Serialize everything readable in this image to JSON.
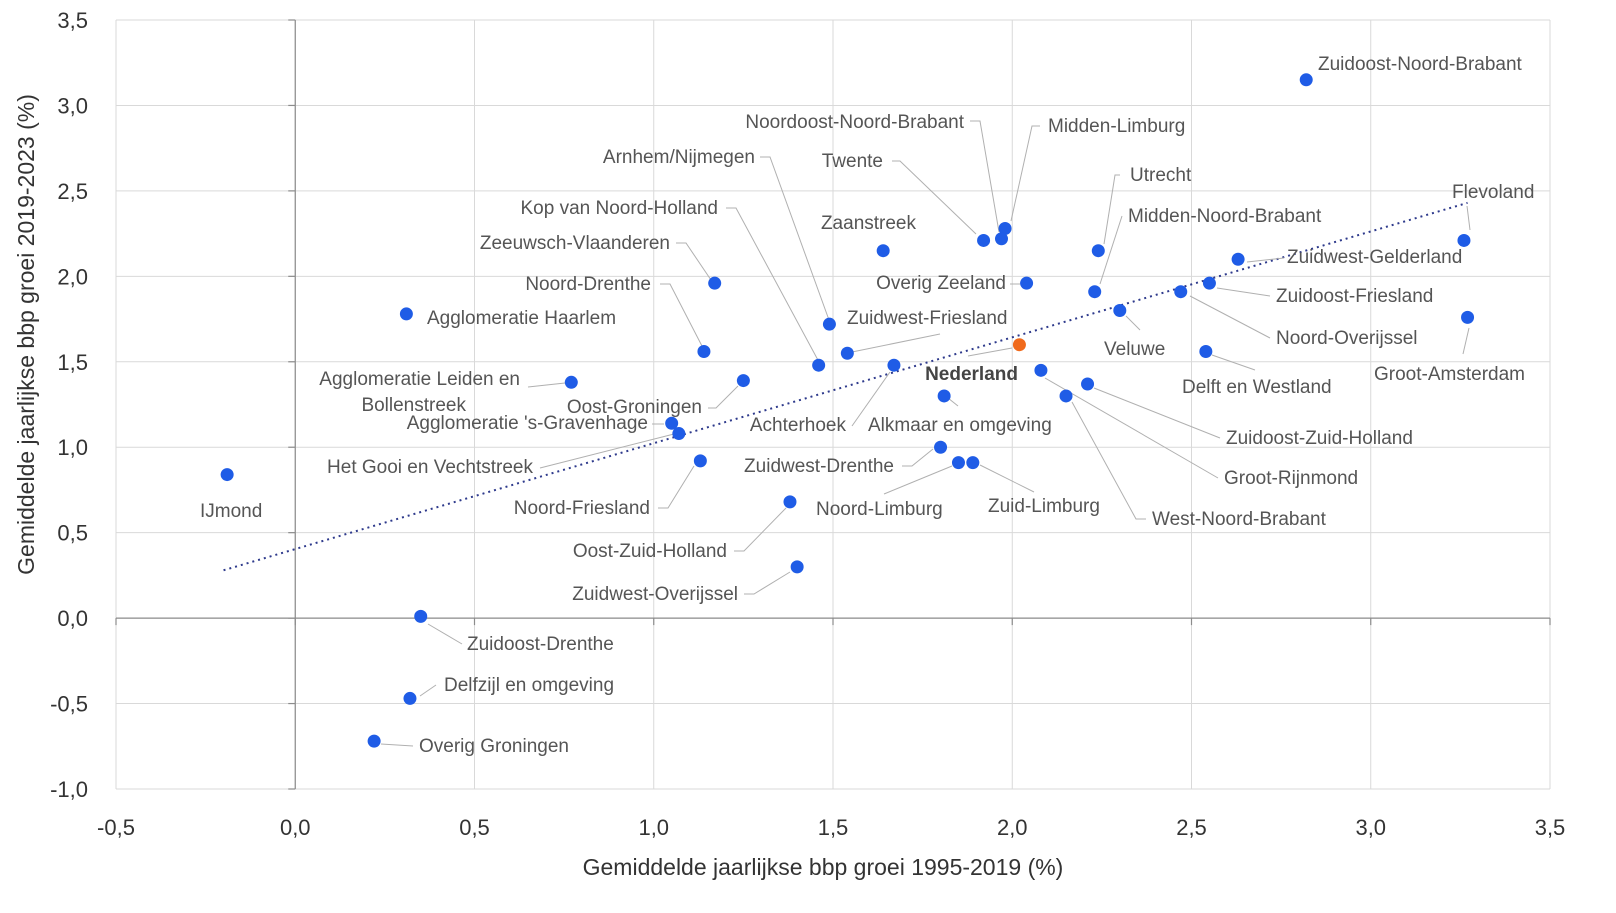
{
  "chart_data": {
    "type": "scatter",
    "title": "",
    "xlabel": "Gemiddelde jaarlijkse bbp groei 1995-2019 (%)",
    "ylabel": "Gemiddelde jaarlijkse bbp groei 2019-2023 (%)",
    "xlim": [
      -0.5,
      3.5
    ],
    "ylim": [
      -1.0,
      3.5
    ],
    "x_ticks": [
      "-0,5",
      "0,0",
      "0,5",
      "1,0",
      "1,5",
      "2,0",
      "2,5",
      "3,0",
      "3,5"
    ],
    "y_ticks": [
      "-1,0",
      "-0,5",
      "0,0",
      "0,5",
      "1,0",
      "1,5",
      "2,0",
      "2,5",
      "3,0",
      "3,5"
    ],
    "grid": true,
    "colors": {
      "point": "#1f5ce6",
      "highlight": "#f06a1c",
      "trend": "#2e3a8c"
    },
    "trendline": {
      "x": [
        -0.2,
        3.27
      ],
      "y": [
        0.28,
        2.43
      ]
    },
    "points": [
      {
        "name": "Zuidoost-Noord-Brabant",
        "x": 2.82,
        "y": 3.15
      },
      {
        "name": "Flevoland",
        "x": 3.26,
        "y": 2.21
      },
      {
        "name": "Groot-Amsterdam",
        "x": 3.27,
        "y": 1.76
      },
      {
        "name": "Zuidwest-Gelderland",
        "x": 2.63,
        "y": 2.1
      },
      {
        "name": "Zuidoost-Friesland",
        "x": 2.55,
        "y": 1.96
      },
      {
        "name": "Noord-Overijssel",
        "x": 2.47,
        "y": 1.91
      },
      {
        "name": "Delft en Westland",
        "x": 2.54,
        "y": 1.56
      },
      {
        "name": "Veluwe",
        "x": 2.3,
        "y": 1.8
      },
      {
        "name": "Midden-Noord-Brabant",
        "x": 2.23,
        "y": 1.91
      },
      {
        "name": "Utrecht",
        "x": 2.24,
        "y": 2.15
      },
      {
        "name": "Midden-Limburg",
        "x": 1.98,
        "y": 2.28
      },
      {
        "name": "Noordoost-Noord-Brabant",
        "x": 1.97,
        "y": 2.22
      },
      {
        "name": "Twente",
        "x": 1.92,
        "y": 2.21
      },
      {
        "name": "Overig Zeeland",
        "x": 2.04,
        "y": 1.96
      },
      {
        "name": "Zaanstreek",
        "x": 1.64,
        "y": 2.15
      },
      {
        "name": "Nederland",
        "x": 2.02,
        "y": 1.6,
        "highlight": true
      },
      {
        "name": "Zuidoost-Zuid-Holland",
        "x": 2.21,
        "y": 1.37
      },
      {
        "name": "Groot-Rijnmond",
        "x": 2.08,
        "y": 1.45
      },
      {
        "name": "West-Noord-Brabant",
        "x": 2.15,
        "y": 1.3
      },
      {
        "name": "Alkmaar en omgeving",
        "x": 1.81,
        "y": 1.3
      },
      {
        "name": "Zuidwest-Friesland",
        "x": 1.54,
        "y": 1.55
      },
      {
        "name": "Achterhoek",
        "x": 1.67,
        "y": 1.48
      },
      {
        "name": "Arnhem/Nijmegen",
        "x": 1.46,
        "y": 1.48
      },
      {
        "name": "Kop van Noord-Holland",
        "x": 1.49,
        "y": 1.72
      },
      {
        "name": "Zeeuwsch-Vlaanderen",
        "x": 1.17,
        "y": 1.96
      },
      {
        "name": "Noord-Drenthe",
        "x": 1.14,
        "y": 1.56
      },
      {
        "name": "Oost-Groningen",
        "x": 1.25,
        "y": 1.39
      },
      {
        "name": "Agglomeratie Haarlem",
        "x": 0.31,
        "y": 1.78
      },
      {
        "name": "Agglomeratie Leiden en Bollenstreek",
        "x": 0.77,
        "y": 1.38
      },
      {
        "name": "Agglomeratie 's-Gravenhage",
        "x": 1.05,
        "y": 1.14
      },
      {
        "name": "Het Gooi en Vechtstreek",
        "x": 1.07,
        "y": 1.08
      },
      {
        "name": "Noord-Friesland",
        "x": 1.13,
        "y": 0.92
      },
      {
        "name": "Zuidwest-Drenthe",
        "x": 1.8,
        "y": 1.0
      },
      {
        "name": "Noord-Limburg",
        "x": 1.85,
        "y": 0.91
      },
      {
        "name": "Zuid-Limburg",
        "x": 1.89,
        "y": 0.91
      },
      {
        "name": "Oost-Zuid-Holland",
        "x": 1.38,
        "y": 0.68
      },
      {
        "name": "Zuidwest-Overijssel",
        "x": 1.4,
        "y": 0.3
      },
      {
        "name": "IJmond",
        "x": -0.19,
        "y": 0.84
      },
      {
        "name": "Zuidoost-Drenthe",
        "x": 0.35,
        "y": 0.01
      },
      {
        "name": "Delfzijl en omgeving",
        "x": 0.32,
        "y": -0.47
      },
      {
        "name": "Overig Groningen",
        "x": 0.22,
        "y": -0.72
      }
    ]
  }
}
